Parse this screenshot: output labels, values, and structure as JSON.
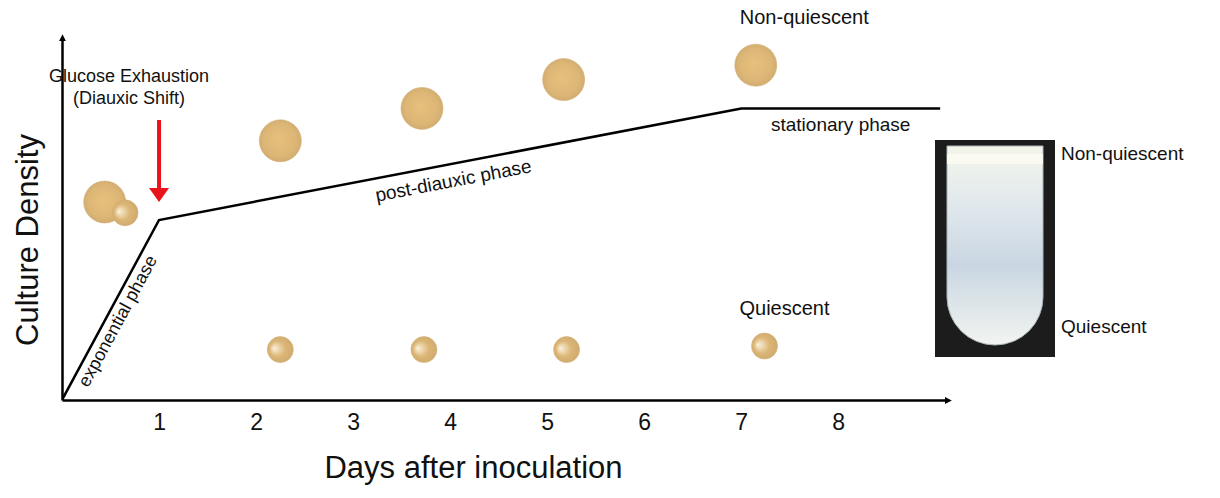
{
  "chart_data": {
    "type": "line",
    "x": [
      0,
      1,
      7,
      9.05
    ],
    "values": [
      0,
      5,
      8.1,
      8.1
    ],
    "color": "#000000",
    "xlim": [
      0,
      9.1
    ],
    "ylim": [
      0,
      10
    ],
    "xticks": [
      1,
      2,
      3,
      4,
      5,
      6,
      7,
      8
    ],
    "yticks": [],
    "tick_labels": "x",
    "xlabel": "Days after inoculation",
    "ylabel": "Culture Density",
    "phases": [
      "exponential phase",
      "post-diauxic phase",
      "stationary phase"
    ],
    "annotation": {
      "text": [
        "Glucose Exhaustion",
        "(Diauxic Shift)"
      ],
      "x": 1,
      "color": "#e8141b"
    },
    "cells": [
      {
        "name": "Non-quiescent",
        "color": "#dcb676",
        "marker": "large-circle",
        "x": [
          0.44,
          2.25,
          3.71,
          5.17,
          7.15
        ],
        "values": [
          5.5,
          7.2,
          8.1,
          8.9,
          9.3
        ]
      },
      {
        "name": "Quiescent",
        "color": "#dcb676",
        "marker": "small-circle",
        "x": [
          0.65,
          2.25,
          3.73,
          5.2,
          7.24
        ],
        "values": [
          5.2,
          1.4,
          1.4,
          1.4,
          1.5
        ]
      }
    ],
    "tube_labels": [
      "Non-quiescent",
      "Quiescent"
    ]
  }
}
